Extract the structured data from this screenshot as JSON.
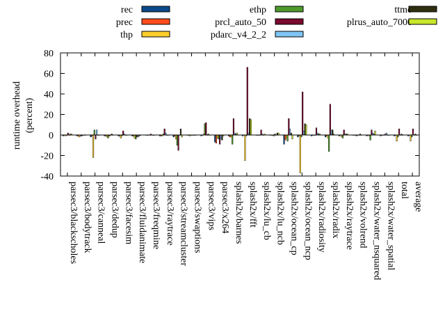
{
  "chart_data": {
    "type": "bar",
    "ylabel": "runtime overhead (percent)",
    "ylabel_lines": [
      "runtime overhead",
      "(percent)"
    ],
    "ylim": [
      -40,
      80
    ],
    "yticks": [
      -40,
      -20,
      0,
      20,
      40,
      60,
      80
    ],
    "legend_position": "top",
    "categories": [
      "parsec3/blackscholes",
      "parsec3/bodytrack",
      "parsec3/canneal",
      "parsec3/dedup",
      "parsec3/facesim",
      "parsec3/fluidanimate",
      "parsec3/freqmine",
      "parsec3/raytrace",
      "parsec3/streamcluster",
      "parsec3/swaptions",
      "parsec3/vips",
      "parsec3/x264",
      "splash2x/barnes",
      "splash2x/fft",
      "splash2x/lu_cb",
      "splash2x/lu_ncb",
      "splash2x/ocean_cp",
      "splash2x/ocean_ncp",
      "splash2x/radiosity",
      "splash2x/radix",
      "splash2x/raytrace",
      "splash2x/volrend",
      "splash2x/water_nsquared",
      "splash2x/water_spatial",
      "total",
      "average"
    ],
    "series": [
      {
        "name": "rec",
        "color": "#0b4a8a",
        "values": [
          -1,
          -1,
          -2,
          -1,
          -1,
          -1,
          0,
          -1,
          -2,
          0,
          -1,
          -7,
          -1,
          -1,
          0,
          0,
          -9,
          -2,
          -1,
          -2,
          -1,
          0,
          -1,
          -1,
          -1,
          -1
        ]
      },
      {
        "name": "prec",
        "color": "#ff4b1b",
        "values": [
          0,
          -1,
          -1,
          -1,
          -1,
          -1,
          0,
          -1,
          -1,
          0,
          0,
          -8,
          -2,
          0,
          0,
          0,
          -5,
          -1,
          0,
          -1,
          0,
          0,
          0,
          0,
          0,
          0
        ]
      },
      {
        "name": "thp",
        "color": "#ffcf2b",
        "values": [
          -1,
          -2,
          -22,
          -2,
          -3,
          -3,
          0,
          -1,
          -4,
          -1,
          1,
          -3,
          -2,
          -25,
          0,
          0,
          -3,
          -37,
          0,
          -3,
          -2,
          0,
          -1,
          0,
          -6,
          -6
        ]
      },
      {
        "name": "ethp",
        "color": "#4e9a2b",
        "values": [
          0,
          -1,
          5,
          -3,
          -1,
          -4,
          0,
          1,
          -10,
          0,
          11,
          -4,
          -9,
          -1,
          0,
          -1,
          -6,
          -2,
          0,
          -16,
          -3,
          -1,
          -5,
          0,
          -2,
          -2
        ]
      },
      {
        "name": "prcl_auto_50",
        "color": "#7a0a2e",
        "values": [
          2,
          -1,
          -4,
          -1,
          4,
          -2,
          1,
          6,
          -15,
          0,
          12,
          -9,
          16,
          66,
          5,
          1,
          16,
          42,
          7,
          30,
          5,
          0,
          5,
          1,
          6,
          6
        ]
      },
      {
        "name": "pdarc_v4_2_2",
        "color": "#7fc5f5",
        "values": [
          0,
          0,
          5,
          0,
          1,
          -2,
          0,
          2,
          0,
          0,
          0,
          -4,
          2,
          2,
          1,
          0,
          6,
          4,
          2,
          5,
          1,
          0,
          2,
          2,
          0,
          0
        ]
      },
      {
        "name": "ttmo",
        "color": "#2f2f10",
        "values": [
          1,
          0,
          0,
          1,
          0,
          -1,
          0,
          0,
          6,
          0,
          1,
          -5,
          1,
          16,
          0,
          2,
          2,
          11,
          1,
          5,
          1,
          1,
          1,
          0,
          1,
          1
        ]
      },
      {
        "name": "plrus_auto_7000",
        "color": "#c8e62a",
        "values": [
          1,
          0,
          0,
          0,
          0,
          0,
          0,
          0,
          -2,
          0,
          0,
          -1,
          2,
          15,
          1,
          2,
          -4,
          10,
          1,
          1,
          1,
          0,
          4,
          0,
          0,
          0
        ]
      }
    ]
  }
}
